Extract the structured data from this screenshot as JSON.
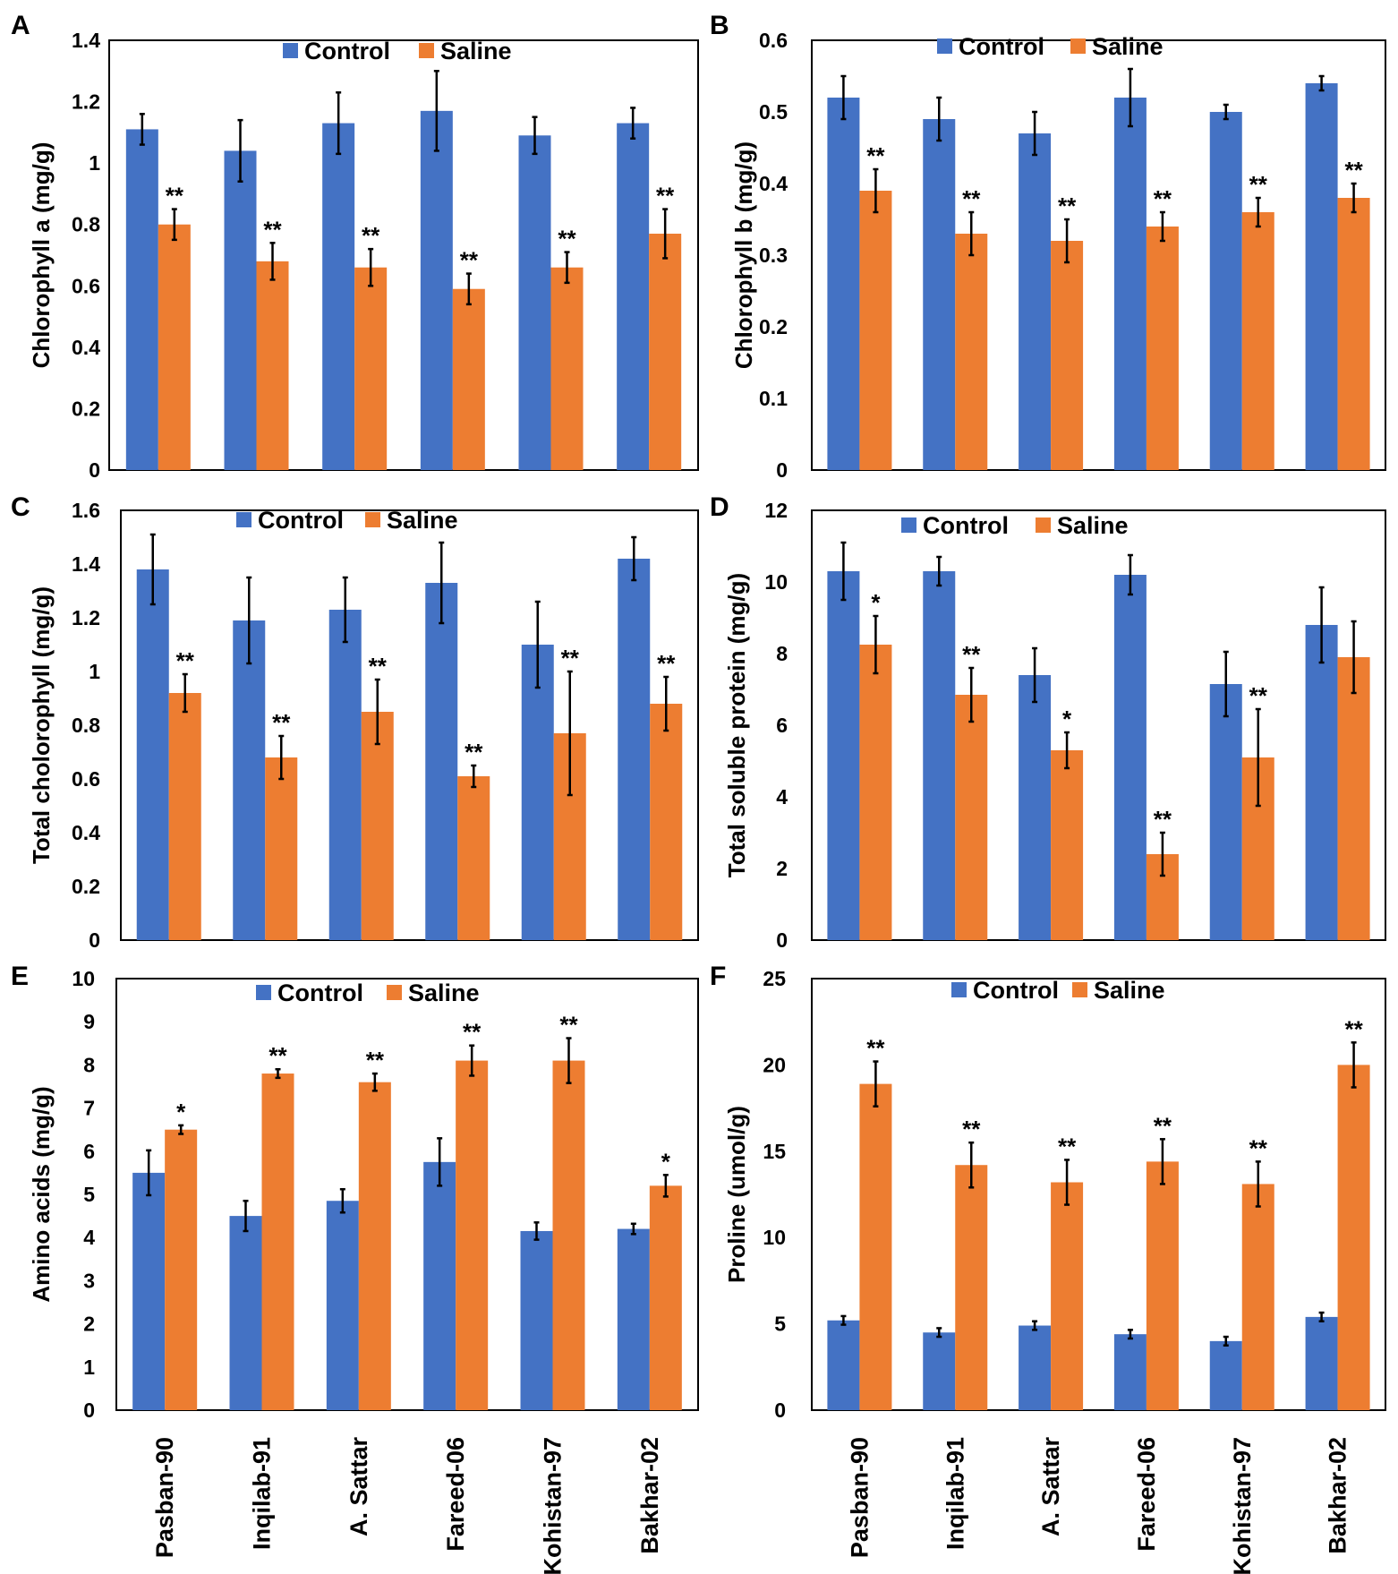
{
  "legend": {
    "control": "Control",
    "saline": "Saline"
  },
  "colors": {
    "control": "#4472C4",
    "saline": "#ED7D31",
    "axis": "#000000"
  },
  "categories": [
    "Pasban-90",
    "Inqilab-91",
    "A. Sattar",
    "Fareed-06",
    "Kohistan-97",
    "Bakhar-02"
  ],
  "chart_data": [
    {
      "panel": "A",
      "type": "bar",
      "ylabel": "Chlorophyll a (mg/g)",
      "ylim": [
        0,
        1.4
      ],
      "yticks": [
        "0",
        "0.2",
        "0.4",
        "0.6",
        "0.8",
        "1",
        "1.2",
        "1.4"
      ],
      "legend_position": "top-center",
      "series": [
        {
          "name": "Control",
          "values": [
            1.11,
            1.04,
            1.13,
            1.17,
            1.09,
            1.13
          ],
          "errors": [
            0.05,
            0.1,
            0.1,
            0.13,
            0.06,
            0.05
          ],
          "sig": [
            "",
            "",
            "",
            "",
            "",
            ""
          ]
        },
        {
          "name": "Saline",
          "values": [
            0.8,
            0.68,
            0.66,
            0.59,
            0.66,
            0.77
          ],
          "errors": [
            0.05,
            0.06,
            0.06,
            0.05,
            0.05,
            0.08
          ],
          "sig": [
            "**",
            "**",
            "**",
            "**",
            "**",
            "**"
          ]
        }
      ]
    },
    {
      "panel": "B",
      "type": "bar",
      "ylabel": "Chlorophyll b (mg/g)",
      "ylim": [
        0,
        0.6
      ],
      "yticks": [
        "0",
        "0.1",
        "0.2",
        "0.3",
        "0.4",
        "0.5",
        "0.6"
      ],
      "legend_position": "top-center",
      "series": [
        {
          "name": "Control",
          "values": [
            0.52,
            0.49,
            0.47,
            0.52,
            0.5,
            0.54
          ],
          "errors": [
            0.03,
            0.03,
            0.03,
            0.04,
            0.01,
            0.01
          ],
          "sig": [
            "",
            "",
            "",
            "",
            "",
            ""
          ]
        },
        {
          "name": "Saline",
          "values": [
            0.39,
            0.33,
            0.32,
            0.34,
            0.36,
            0.38
          ],
          "errors": [
            0.03,
            0.03,
            0.03,
            0.02,
            0.02,
            0.02
          ],
          "sig": [
            "**",
            "**",
            "**",
            "**",
            "**",
            "**"
          ]
        }
      ]
    },
    {
      "panel": "C",
      "type": "bar",
      "ylabel": "Total cholorophyll (mg/g)",
      "ylim": [
        0,
        1.6
      ],
      "yticks": [
        "0",
        "0.2",
        "0.4",
        "0.6",
        "0.8",
        "1",
        "1.2",
        "1.4",
        "1.6"
      ],
      "legend_position": "top-center",
      "series": [
        {
          "name": "Control",
          "values": [
            1.38,
            1.19,
            1.23,
            1.33,
            1.1,
            1.42
          ],
          "errors": [
            0.13,
            0.16,
            0.12,
            0.15,
            0.16,
            0.08
          ],
          "sig": [
            "",
            "",
            "",
            "",
            "",
            ""
          ]
        },
        {
          "name": "Saline",
          "values": [
            0.92,
            0.68,
            0.85,
            0.61,
            0.77,
            0.88
          ],
          "errors": [
            0.07,
            0.08,
            0.12,
            0.04,
            0.23,
            0.1
          ],
          "sig": [
            "**",
            "**",
            "**",
            "**",
            "**",
            "**"
          ]
        }
      ]
    },
    {
      "panel": "D",
      "type": "bar",
      "ylabel": "Total soluble protein (mg/g)",
      "ylim": [
        0,
        12
      ],
      "yticks": [
        "0",
        "2",
        "4",
        "6",
        "8",
        "10",
        "12"
      ],
      "legend_position": "top-center",
      "series": [
        {
          "name": "Control",
          "values": [
            10.3,
            10.3,
            7.4,
            10.2,
            7.15,
            8.8
          ],
          "errors": [
            0.8,
            0.4,
            0.75,
            0.55,
            0.9,
            1.05
          ],
          "sig": [
            "",
            "",
            "",
            "",
            "",
            ""
          ]
        },
        {
          "name": "Saline",
          "values": [
            8.25,
            6.85,
            5.3,
            2.4,
            5.1,
            7.9
          ],
          "errors": [
            0.8,
            0.75,
            0.5,
            0.6,
            1.35,
            1.0
          ],
          "sig": [
            "*",
            "**",
            "*",
            "**",
            "**",
            ""
          ]
        }
      ]
    },
    {
      "panel": "E",
      "type": "bar",
      "ylabel": "Amino acids (mg/g)",
      "ylim": [
        0,
        10
      ],
      "yticks": [
        "0",
        "1",
        "2",
        "3",
        "4",
        "5",
        "6",
        "7",
        "8",
        "9",
        "10"
      ],
      "legend_position": "top-center",
      "series": [
        {
          "name": "Control",
          "values": [
            5.5,
            4.5,
            4.85,
            5.75,
            4.15,
            4.2
          ],
          "errors": [
            0.52,
            0.35,
            0.27,
            0.55,
            0.2,
            0.12
          ],
          "sig": [
            "",
            "",
            "",
            "",
            "",
            ""
          ]
        },
        {
          "name": "Saline",
          "values": [
            6.5,
            7.8,
            7.6,
            8.1,
            8.1,
            5.2
          ],
          "errors": [
            0.1,
            0.1,
            0.2,
            0.35,
            0.52,
            0.25
          ],
          "sig": [
            "*",
            "**",
            "**",
            "**",
            "**",
            "*"
          ]
        }
      ]
    },
    {
      "panel": "F",
      "type": "bar",
      "ylabel": "Proline (umol/g)",
      "ylim": [
        0,
        25
      ],
      "yticks": [
        "0",
        "5",
        "10",
        "15",
        "20",
        "25"
      ],
      "legend_position": "top-center",
      "series": [
        {
          "name": "Control",
          "values": [
            5.2,
            4.5,
            4.9,
            4.4,
            4.0,
            5.4
          ],
          "errors": [
            0.25,
            0.25,
            0.25,
            0.25,
            0.25,
            0.25
          ],
          "sig": [
            "",
            "",
            "",
            "",
            "",
            ""
          ]
        },
        {
          "name": "Saline",
          "values": [
            18.9,
            14.2,
            13.2,
            14.4,
            13.1,
            20.0
          ],
          "errors": [
            1.3,
            1.3,
            1.3,
            1.3,
            1.3,
            1.3
          ],
          "sig": [
            "**",
            "**",
            "**",
            "**",
            "**",
            "**"
          ]
        }
      ]
    }
  ]
}
